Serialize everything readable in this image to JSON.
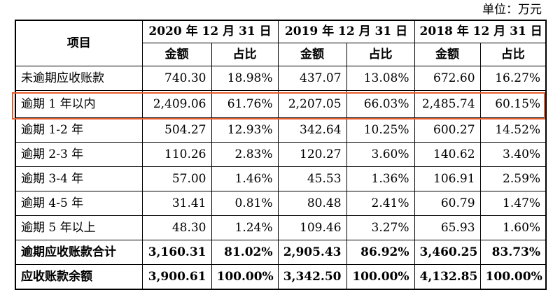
{
  "unit_label": "单位：万元",
  "header": {
    "item": "项目",
    "years": [
      "2020 年 12 月 31 日",
      "2019 年 12 月 31 日",
      "2018 年 12 月 31 日"
    ],
    "amount": "金额",
    "ratio": "占比"
  },
  "rows": [
    {
      "label": "未逾期应收账款",
      "v": [
        "740.30",
        "18.98%",
        "437.07",
        "13.08%",
        "672.60",
        "16.27%"
      ]
    },
    {
      "label": "逾期 1 年以内",
      "v": [
        "2,409.06",
        "61.76%",
        "2,207.05",
        "66.03%",
        "2,485.74",
        "60.15%"
      ]
    },
    {
      "label": "逾期 1-2 年",
      "v": [
        "504.27",
        "12.93%",
        "342.64",
        "10.25%",
        "600.27",
        "14.52%"
      ]
    },
    {
      "label": "逾期 2-3 年",
      "v": [
        "110.26",
        "2.83%",
        "120.27",
        "3.60%",
        "140.62",
        "3.40%"
      ]
    },
    {
      "label": "逾期 3-4 年",
      "v": [
        "57.00",
        "1.46%",
        "45.53",
        "1.36%",
        "106.91",
        "2.59%"
      ]
    },
    {
      "label": "逾期 4-5 年",
      "v": [
        "31.41",
        "0.81%",
        "80.48",
        "2.41%",
        "60.79",
        "1.47%"
      ]
    },
    {
      "label": "逾期 5 年以上",
      "v": [
        "48.30",
        "1.24%",
        "109.46",
        "3.27%",
        "65.93",
        "1.60%"
      ]
    },
    {
      "label": "逾期应收账款合计",
      "v": [
        "3,160.31",
        "81.02%",
        "2,905.43",
        "86.92%",
        "3,460.25",
        "83.73%"
      ]
    },
    {
      "label": "应收账款余额",
      "v": [
        "3,900.61",
        "100.00%",
        "3,342.50",
        "100.00%",
        "4,132.85",
        "100.00%"
      ]
    }
  ],
  "highlight_color": "#e55d2c"
}
